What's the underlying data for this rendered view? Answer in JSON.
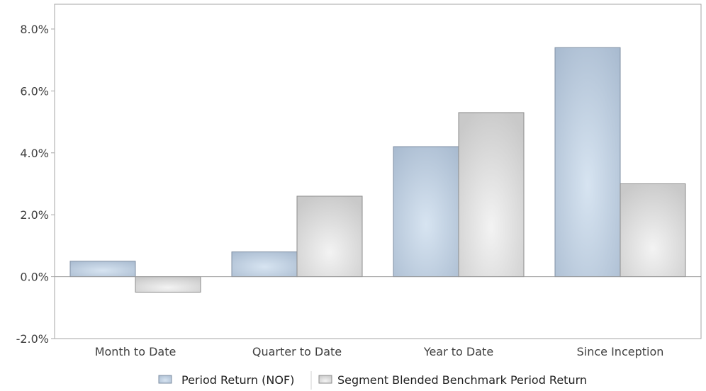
{
  "chart_data": {
    "type": "bar",
    "categories": [
      "Month to Date",
      "Quarter to Date",
      "Year to Date",
      "Since Inception"
    ],
    "series": [
      {
        "name": "Period Return (NOF)",
        "values": [
          0.5,
          0.8,
          4.2,
          7.4
        ],
        "color": "#b9c9db"
      },
      {
        "name": "Segment Blended Benchmark Period Return",
        "values": [
          -0.5,
          2.6,
          5.3,
          3.0
        ],
        "color": "#d9d9d9"
      }
    ],
    "yticks": [
      -2.0,
      0.0,
      2.0,
      4.0,
      6.0,
      8.0
    ],
    "ylim": [
      -2.0,
      8.8
    ],
    "y_format": "percent_1dp",
    "title": "",
    "xlabel": "",
    "ylabel": "",
    "grid": false,
    "legend_position": "bottom"
  }
}
